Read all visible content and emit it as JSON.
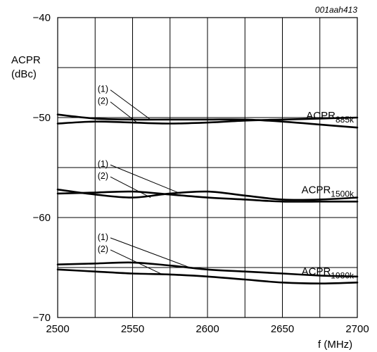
{
  "chart_data": {
    "type": "line",
    "document_id": "001aah413",
    "ylabel_line1": "ACPR",
    "ylabel_line2": "(dBc)",
    "xlabel": "f (MHz)",
    "xlim": [
      2500,
      2700
    ],
    "ylim": [
      -70,
      -40
    ],
    "grid": true,
    "x_ticks": [
      2500,
      2550,
      2600,
      2650,
      2700
    ],
    "x_tick_labels": [
      "2500",
      "2550",
      "2600",
      "2650",
      "2700"
    ],
    "y_ticks": [
      -40,
      -50,
      -60,
      -70
    ],
    "y_tick_labels": [
      "−40",
      "−50",
      "−60",
      "−70"
    ],
    "x_gridlines": [
      2500,
      2525,
      2550,
      2575,
      2600,
      2625,
      2650,
      2675,
      2700
    ],
    "y_gridlines": [
      -40,
      -45,
      -50,
      -55,
      -60,
      -65,
      -70
    ],
    "groups": [
      {
        "label_main": "ACPR",
        "label_sub": "885k",
        "ref1": "(1)",
        "ref2": "(2)",
        "series": [
          {
            "name": "(1)",
            "x": [
              2500,
              2525,
              2550,
              2575,
              2600,
              2625,
              2650,
              2675,
              2700
            ],
            "y": [
              -49.7,
              -50.1,
              -50.2,
              -50.2,
              -50.2,
              -50.2,
              -50.4,
              -50.7,
              -51.0
            ]
          },
          {
            "name": "(2)",
            "x": [
              2500,
              2525,
              2550,
              2575,
              2600,
              2625,
              2650,
              2675,
              2700
            ],
            "y": [
              -50.6,
              -50.4,
              -50.5,
              -50.6,
              -50.5,
              -50.3,
              -50.2,
              -50.1,
              -50.0
            ]
          }
        ]
      },
      {
        "label_main": "ACPR",
        "label_sub": "1500k",
        "ref1": "(1)",
        "ref2": "(2)",
        "series": [
          {
            "name": "(1)",
            "x": [
              2500,
              2525,
              2550,
              2575,
              2600,
              2625,
              2650,
              2675,
              2700
            ],
            "y": [
              -57.2,
              -57.7,
              -58.0,
              -57.6,
              -57.4,
              -57.8,
              -58.2,
              -58.2,
              -58.0
            ]
          },
          {
            "name": "(2)",
            "x": [
              2500,
              2525,
              2550,
              2575,
              2600,
              2625,
              2650,
              2675,
              2700
            ],
            "y": [
              -57.6,
              -57.5,
              -57.4,
              -57.7,
              -58.0,
              -58.2,
              -58.4,
              -58.4,
              -58.4
            ]
          }
        ]
      },
      {
        "label_main": "ACPR",
        "label_sub": "1980k",
        "ref1": "(1)",
        "ref2": "(2)",
        "series": [
          {
            "name": "(1)",
            "x": [
              2500,
              2525,
              2550,
              2575,
              2600,
              2625,
              2650,
              2675,
              2700
            ],
            "y": [
              -64.7,
              -64.6,
              -64.5,
              -64.8,
              -65.2,
              -65.4,
              -65.6,
              -65.8,
              -65.9
            ]
          },
          {
            "name": "(2)",
            "x": [
              2500,
              2525,
              2550,
              2575,
              2600,
              2625,
              2650,
              2675,
              2700
            ],
            "y": [
              -65.2,
              -65.4,
              -65.6,
              -65.7,
              -65.9,
              -66.2,
              -66.5,
              -66.6,
              -66.5
            ]
          }
        ]
      }
    ],
    "annotations": [
      {
        "text": "(1)",
        "group": 0,
        "x": 2562,
        "y": -50.2
      },
      {
        "text": "(2)",
        "group": 0,
        "x": 2553,
        "y": -50.5
      },
      {
        "text": "(1)",
        "group": 1,
        "x": 2582,
        "y": -57.6
      },
      {
        "text": "(2)",
        "group": 1,
        "x": 2562,
        "y": -58.0
      },
      {
        "text": "(1)",
        "group": 2,
        "x": 2590,
        "y": -65.1
      },
      {
        "text": "(2)",
        "group": 2,
        "x": 2570,
        "y": -65.7
      }
    ]
  }
}
